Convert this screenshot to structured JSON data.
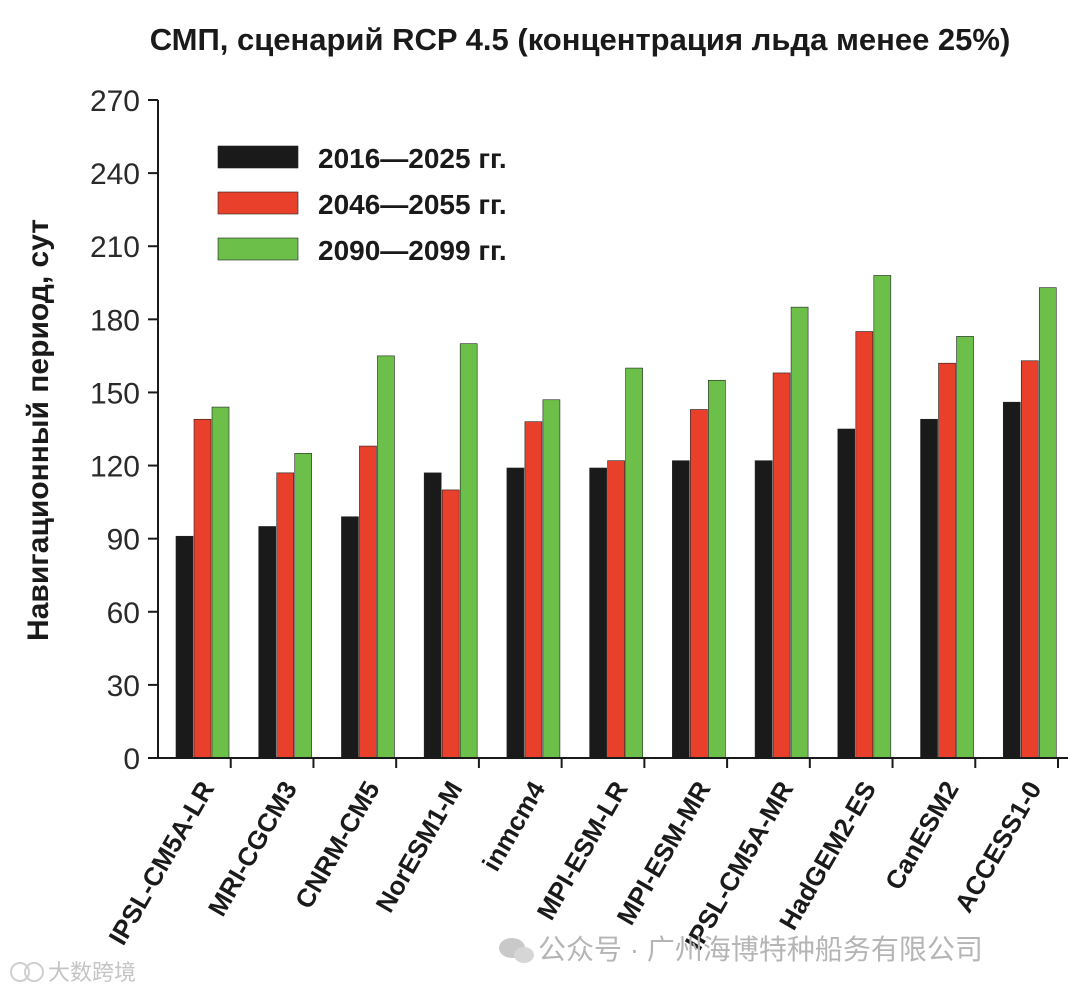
{
  "chart_data": {
    "type": "bar",
    "title": "СМП, сценарий RCP 4.5 (концентрация льда менее 25%)",
    "ylabel": "Навигационный период, сут",
    "xlabel": "",
    "ylim": [
      0,
      270
    ],
    "yticks": [
      0,
      30,
      60,
      90,
      120,
      150,
      180,
      210,
      240,
      270
    ],
    "categories": [
      "IPSL-CM5A-LR",
      "MRI-CGCM3",
      "CNRM-CM5",
      "NorESM1-M",
      "inmcm4",
      "MPI-ESM-LR",
      "MPI-ESM-MR",
      "IPSL-CM5A-MR",
      "HadGEM2-ES",
      "CanESM2",
      "ACCESS1-0"
    ],
    "series": [
      {
        "name": "2016—2025 гг.",
        "color": "#1a1a1a",
        "values": [
          91,
          95,
          99,
          117,
          119,
          119,
          122,
          122,
          135,
          139,
          146
        ]
      },
      {
        "name": "2046—2055 гг.",
        "color": "#e8402a",
        "values": [
          139,
          117,
          128,
          110,
          138,
          122,
          143,
          158,
          175,
          162,
          163
        ]
      },
      {
        "name": "2090—2099 гг.",
        "color": "#6cc04a",
        "values": [
          144,
          125,
          165,
          170,
          147,
          160,
          155,
          185,
          198,
          173,
          193
        ]
      }
    ],
    "legend": "top-left",
    "grid": false
  },
  "watermark": {
    "wechat": "公众号 · 广州海博特种船务有限公司",
    "corner": "大数跨境"
  },
  "colors": {
    "axis": "#1a1a1a"
  }
}
